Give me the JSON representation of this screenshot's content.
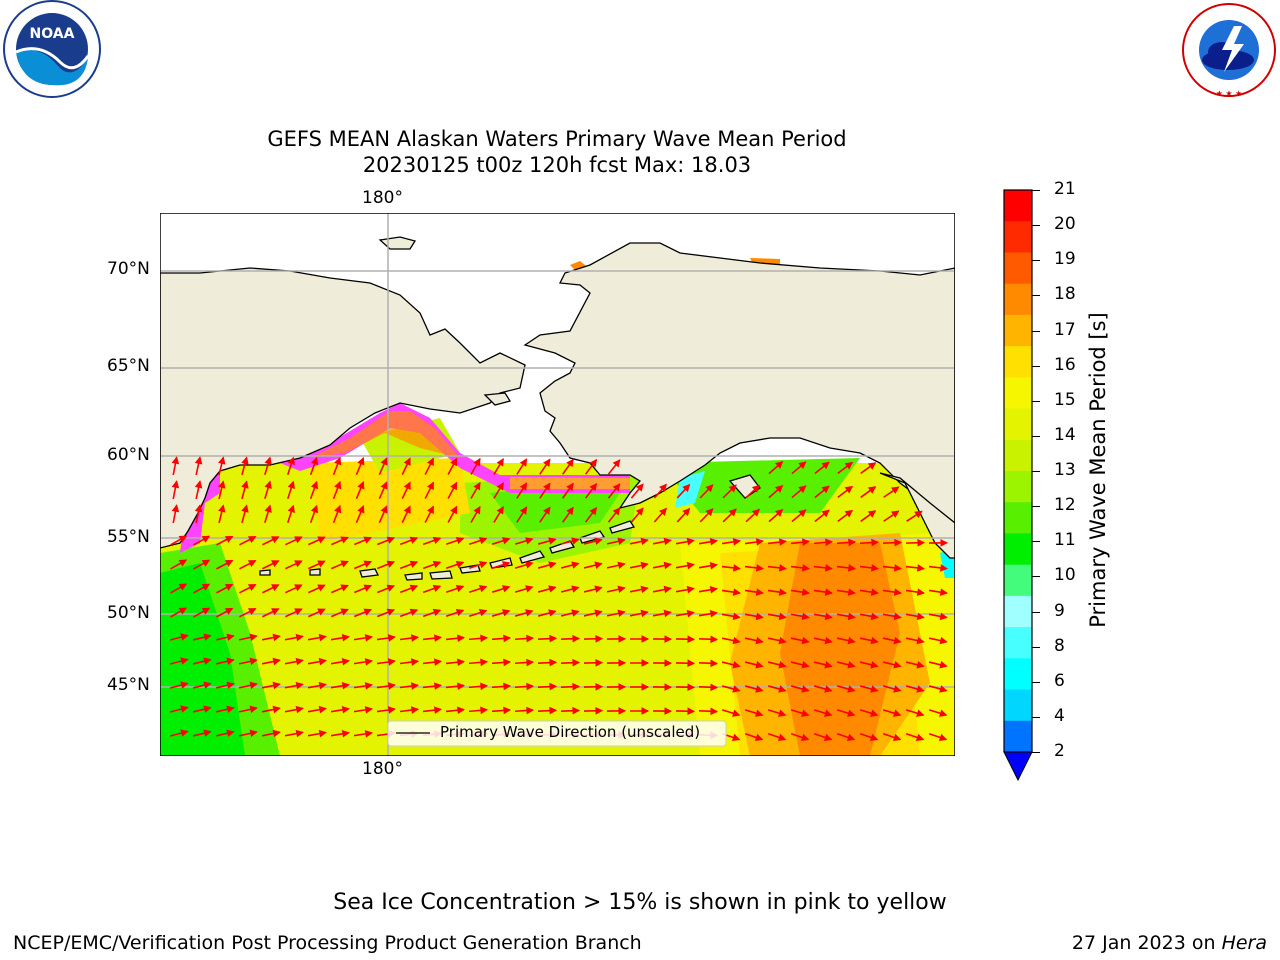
{
  "header": {
    "left_logo": {
      "name": "noaa-logo",
      "text": "NOAA",
      "ring_text": "NATIONAL OCEANIC AND ATMOSPHERIC ADMINISTRATION · U.S. DEPARTMENT OF COMMERCE"
    },
    "right_logo": {
      "name": "nws-logo",
      "ring_text": "NATIONAL WEATHER SERVICE"
    }
  },
  "map": {
    "title_line1": "GEFS MEAN Alaskan Waters Primary Wave Mean Period",
    "title_line2": "20230125 t00z 120h fcst   Max: 18.03",
    "lon_label_top": "180°",
    "lon_label_bottom": "180°",
    "lat_labels": [
      "70°N",
      "65°N",
      "60°N",
      "55°N",
      "50°N",
      "45°N"
    ],
    "legend_label": "Primary Wave Direction (unscaled)",
    "colors": {
      "land": "#efedd9",
      "arrow": "#ff0000",
      "grid": "#b0b0b0"
    }
  },
  "colorbar": {
    "label": "Primary Wave Mean Period [s]",
    "ticks": [
      "21",
      "20",
      "19",
      "18",
      "17",
      "16",
      "15",
      "14",
      "13",
      "12",
      "11",
      "10",
      "9",
      "8",
      "6",
      "4",
      "2"
    ],
    "colors": [
      "#ff0000",
      "#ff2a00",
      "#ff5a00",
      "#ff8a00",
      "#ffb400",
      "#ffe000",
      "#f6f600",
      "#e4f400",
      "#c8f200",
      "#9cf400",
      "#58f000",
      "#00ee00",
      "#44fc7c",
      "#a0ffff",
      "#48ffff",
      "#00ffff",
      "#00d6ff",
      "#0074ff",
      "#0000ff"
    ]
  },
  "footer": {
    "note": "Sea Ice Concentration > 15% is shown in pink to yellow",
    "credit": "NCEP/EMC/Verification Post Processing Product Generation Branch",
    "date": "27 Jan 2023 on",
    "machine": "Hera"
  }
}
